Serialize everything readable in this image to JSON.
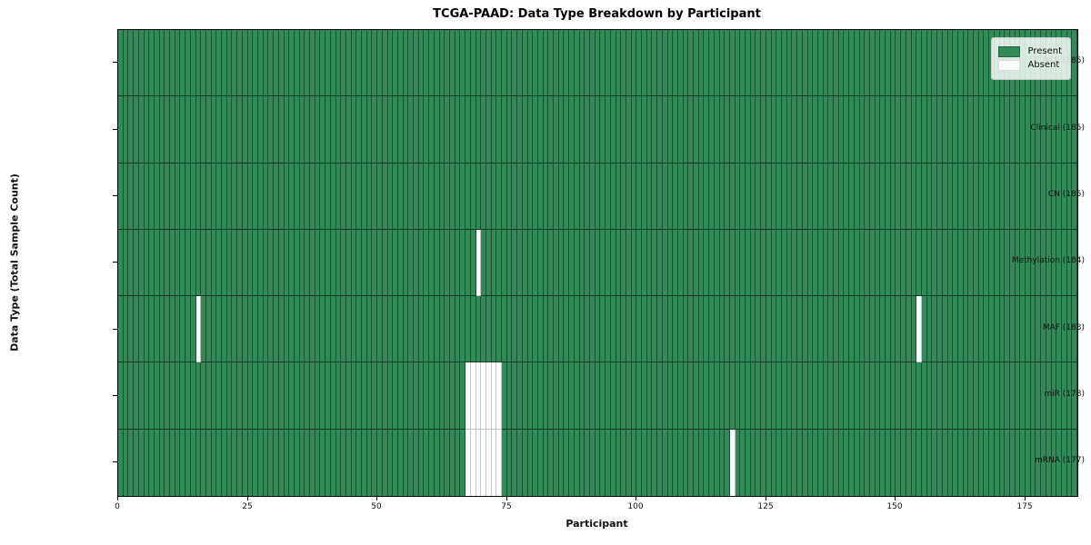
{
  "chart_data": {
    "type": "heatmap",
    "title": "TCGA-PAAD: Data Type Breakdown by Participant",
    "xlabel": "Participant",
    "ylabel": "Data Type (Total Sample Count)",
    "x_ticks": [
      0,
      25,
      50,
      75,
      100,
      125,
      150,
      175
    ],
    "xlim": [
      0,
      185
    ],
    "n_participants": 185,
    "grid": false,
    "legend_position": "upper right",
    "legend": [
      {
        "label": "Present",
        "color": "#318a58"
      },
      {
        "label": "Absent",
        "color": "#ffffff"
      }
    ],
    "colors": {
      "present": "#318a58",
      "absent": "#ffffff"
    },
    "rows": [
      {
        "label": "BCR (185)",
        "data_type": "BCR",
        "total": 185,
        "absent": []
      },
      {
        "label": "Clinical (185)",
        "data_type": "Clinical",
        "total": 185,
        "absent": []
      },
      {
        "label": "CN (185)",
        "data_type": "CN",
        "total": 185,
        "absent": []
      },
      {
        "label": "Methylation (184)",
        "data_type": "Methylation",
        "total": 184,
        "absent": [
          69
        ]
      },
      {
        "label": "MAF (183)",
        "data_type": "MAF",
        "total": 183,
        "absent": [
          15,
          154
        ]
      },
      {
        "label": "miR (178)",
        "data_type": "miR",
        "total": 178,
        "absent": [
          67,
          68,
          69,
          70,
          71,
          72,
          73
        ]
      },
      {
        "label": "mRNA (177)",
        "data_type": "mRNA",
        "total": 177,
        "absent": [
          67,
          68,
          69,
          70,
          71,
          72,
          73,
          118
        ]
      }
    ]
  }
}
